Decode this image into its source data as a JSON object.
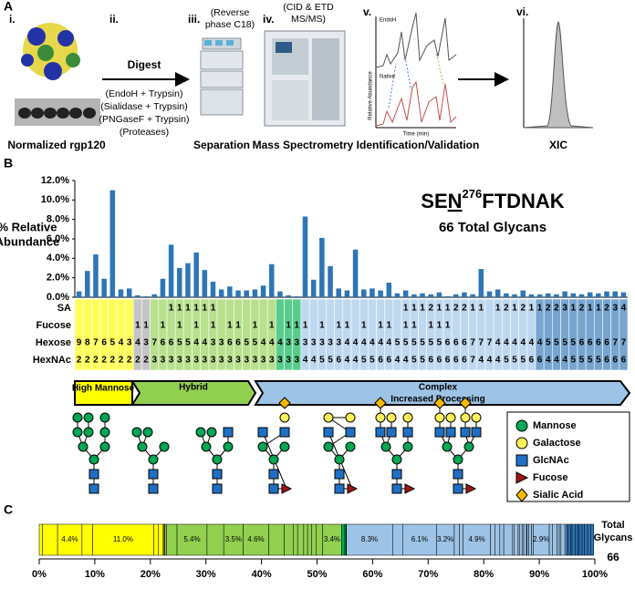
{
  "panel_a": {
    "label": "A",
    "steps": [
      {
        "numeral": "i.",
        "caption": "Normalized rgp120"
      },
      {
        "numeral": "ii."
      },
      {
        "numeral": "iii.",
        "note": [
          "(Reverse",
          "phase C18)"
        ],
        "caption": "Separation"
      },
      {
        "numeral": "iv.",
        "note": [
          "(CID & ETD",
          "MS/MS)"
        ],
        "caption": "Mass Spectrometry"
      },
      {
        "numeral": "v.",
        "caption": "Identification/Validation"
      },
      {
        "numeral": "vi.",
        "caption": "XIC"
      }
    ],
    "digest": {
      "title": "Digest",
      "methods": [
        "(EndoH + Trypsin)",
        "(Sialidase + Trypsin)",
        "(PNGaseF + Trypsin)",
        "(Proteases)"
      ]
    },
    "chromatogram": {
      "top_label": "EndoH",
      "bottom_label": "Native",
      "x_label": "Time (min)",
      "y_label": "Relative Abundance"
    }
  },
  "panel_b": {
    "label": "B",
    "peptide": {
      "prefix": "SE",
      "residue": "N",
      "position": "276",
      "suffix": "FTDNAK"
    },
    "glycan_count": "66 Total Glycans",
    "classes": [
      "High Mannose",
      "Hybrid",
      "Complex"
    ],
    "processing": "Increased Processing",
    "legend": [
      "Mannose",
      "Galactose",
      "GlcNAc",
      "Fucose",
      "Sialic Acid"
    ]
  },
  "panel_c": {
    "label": "C",
    "total_label": [
      "Total",
      "Glycans"
    ],
    "total": 66
  },
  "chart_data": [
    {
      "type": "bar",
      "y_label": [
        "% Relative",
        "Abundance"
      ],
      "bar_color": "#2e75b6",
      "values": [
        0.6,
        2.7,
        4.4,
        1.9,
        11.0,
        0.8,
        0.9,
        0.2,
        0.1,
        0.3,
        1.9,
        5.4,
        3.0,
        3.5,
        4.6,
        2.8,
        1.6,
        0.8,
        1.1,
        0.7,
        0.7,
        0.8,
        1.2,
        3.4,
        0.6,
        0.2,
        0.1,
        8.3,
        1.8,
        6.1,
        3.2,
        0.9,
        0.7,
        4.9,
        0.8,
        0.9,
        0.7,
        1.5,
        0.4,
        0.7,
        0.3,
        0.4,
        0.3,
        0.5,
        0.1,
        0.3,
        0.5,
        0.3,
        2.9,
        0.6,
        0.8,
        0.4,
        0.3,
        0.7,
        0.3,
        0.3,
        0.4,
        0.3,
        0.6,
        0.4,
        0.3,
        0.5,
        0.4,
        0.6,
        0.6,
        0.5
      ],
      "colors": [
        "#ffff00",
        "#ffff00",
        "#ffff00",
        "#ffff00",
        "#ffff00",
        "#ffff00",
        "#ffff00",
        "#a6a6a6",
        "#a6a6a6",
        "#92d050",
        "#92d050",
        "#92d050",
        "#92d050",
        "#92d050",
        "#92d050",
        "#92d050",
        "#92d050",
        "#92d050",
        "#92d050",
        "#92d050",
        "#92d050",
        "#92d050",
        "#92d050",
        "#92d050",
        "#00b050",
        "#00b050",
        "#00b050",
        "#9dc3e6",
        "#9dc3e6",
        "#9dc3e6",
        "#9dc3e6",
        "#9dc3e6",
        "#9dc3e6",
        "#9dc3e6",
        "#9dc3e6",
        "#9dc3e6",
        "#9dc3e6",
        "#9dc3e6",
        "#9dc3e6",
        "#9dc3e6",
        "#9dc3e6",
        "#9dc3e6",
        "#9dc3e6",
        "#9dc3e6",
        "#9dc3e6",
        "#9dc3e6",
        "#9dc3e6",
        "#9dc3e6",
        "#9dc3e6",
        "#9dc3e6",
        "#9dc3e6",
        "#9dc3e6",
        "#9dc3e6",
        "#9dc3e6",
        "#9dc3e6",
        "#2e75b6",
        "#2e75b6",
        "#2e75b6",
        "#2e75b6",
        "#2e75b6",
        "#2e75b6",
        "#2e75b6",
        "#2e75b6",
        "#2e75b6",
        "#2e75b6",
        "#2e75b6"
      ],
      "ylim": [
        0,
        12
      ],
      "yticks": [
        {
          "value": 0,
          "label": "0.0%"
        },
        {
          "value": 2,
          "label": "2.0%"
        },
        {
          "value": 4,
          "label": "4.0%"
        },
        {
          "value": 6,
          "label": "6.0%"
        },
        {
          "value": 8,
          "label": "8.0%"
        },
        {
          "value": 10,
          "label": "10.0%"
        },
        {
          "value": 12,
          "label": "12.0%"
        }
      ],
      "table": {
        "rows": [
          {
            "label": "SA",
            "values": [
              null,
              null,
              null,
              null,
              null,
              null,
              null,
              null,
              null,
              null,
              null,
              1,
              1,
              1,
              1,
              1,
              1,
              null,
              null,
              null,
              null,
              null,
              null,
              null,
              null,
              null,
              null,
              null,
              null,
              null,
              null,
              null,
              null,
              null,
              null,
              null,
              null,
              null,
              null,
              1,
              1,
              1,
              2,
              1,
              1,
              2,
              2,
              1,
              1,
              null,
              1,
              2,
              1,
              2,
              1,
              1,
              2,
              2,
              3,
              1,
              2,
              1,
              1,
              2,
              3,
              4
            ]
          },
          {
            "label": "Fucose",
            "values": [
              null,
              null,
              null,
              null,
              null,
              null,
              null,
              1,
              1,
              null,
              1,
              null,
              1,
              null,
              1,
              null,
              1,
              null,
              1,
              1,
              null,
              1,
              null,
              1,
              null,
              1,
              1,
              1,
              null,
              1,
              null,
              1,
              1,
              null,
              1,
              null,
              1,
              1,
              null,
              1,
              1,
              null,
              1,
              1,
              1,
              null,
              null,
              null,
              null,
              null,
              null,
              null,
              null,
              null,
              null,
              null,
              null,
              null,
              null,
              null,
              null,
              null,
              null,
              null,
              null,
              null
            ]
          },
          {
            "label": "Hexose",
            "values": [
              9,
              8,
              7,
              6,
              5,
              4,
              3,
              4,
              3,
              7,
              6,
              6,
              5,
              5,
              4,
              4,
              3,
              3,
              6,
              6,
              5,
              5,
              4,
              4,
              4,
              3,
              3,
              3,
              3,
              3,
              3,
              3,
              4,
              4,
              4,
              4,
              4,
              4,
              5,
              5,
              5,
              5,
              5,
              5,
              6,
              6,
              6,
              7,
              7,
              7,
              4,
              4,
              4,
              4,
              4,
              4,
              5,
              5,
              5,
              5,
              6,
              6,
              6,
              6,
              7,
              7
            ]
          },
          {
            "label": "HexNAc",
            "values": [
              2,
              2,
              2,
              2,
              2,
              2,
              2,
              2,
              2,
              3,
              3,
              3,
              3,
              3,
              3,
              3,
              3,
              3,
              3,
              3,
              3,
              3,
              3,
              3,
              3,
              3,
              3,
              4,
              4,
              5,
              5,
              6,
              4,
              4,
              5,
              5,
              6,
              6,
              4,
              4,
              5,
              5,
              6,
              6,
              6,
              6,
              6,
              7,
              4,
              4,
              4,
              5,
              5,
              5,
              6,
              6,
              4,
              4,
              4,
              5,
              5,
              5,
              5,
              6,
              6,
              6
            ]
          }
        ]
      }
    },
    {
      "type": "stacked_bar",
      "values": [
        0.6,
        2.7,
        4.4,
        1.9,
        11.0,
        0.8,
        0.9,
        0.2,
        0.1,
        0.3,
        1.9,
        5.4,
        3.0,
        3.5,
        4.6,
        2.8,
        1.6,
        0.8,
        1.1,
        0.7,
        0.7,
        0.8,
        1.2,
        3.4,
        0.6,
        0.2,
        0.1,
        8.3,
        1.8,
        6.1,
        3.2,
        0.9,
        0.7,
        4.9,
        0.8,
        0.9,
        0.7,
        1.5,
        0.4,
        0.7,
        0.3,
        0.4,
        0.3,
        0.5,
        0.1,
        0.3,
        0.5,
        0.3,
        2.9,
        0.6,
        0.8,
        0.4,
        0.3,
        0.7,
        0.3,
        0.3,
        0.4,
        0.3,
        0.6,
        0.4,
        0.3,
        0.5,
        0.4,
        0.6,
        0.6,
        0.5
      ],
      "value_labels": [
        null,
        null,
        "4.4%",
        null,
        "11.0%",
        null,
        null,
        null,
        null,
        null,
        null,
        "5.4%",
        null,
        "3.5%",
        "4.6%",
        null,
        null,
        null,
        null,
        null,
        null,
        null,
        null,
        "3.4%",
        null,
        null,
        null,
        "8.3%",
        null,
        "6.1%",
        "3.2%",
        null,
        null,
        "4.9%",
        null,
        null,
        null,
        null,
        null,
        null,
        null,
        null,
        null,
        null,
        null,
        null,
        null,
        null,
        "2.9%",
        null,
        null,
        null,
        null,
        null,
        null,
        null,
        null,
        null,
        null,
        null,
        null,
        null,
        null,
        null,
        null,
        null
      ],
      "xlim": [
        0,
        100
      ],
      "xticks": [
        {
          "value": 0,
          "label": "0%"
        },
        {
          "value": 10,
          "label": "10%"
        },
        {
          "value": 20,
          "label": "20%"
        },
        {
          "value": 30,
          "label": "30%"
        },
        {
          "value": 40,
          "label": "40%"
        },
        {
          "value": 50,
          "label": "50%"
        },
        {
          "value": 60,
          "label": "60%"
        },
        {
          "value": 70,
          "label": "70%"
        },
        {
          "value": 80,
          "label": "80%"
        },
        {
          "value": 90,
          "label": "90%"
        },
        {
          "value": 100,
          "label": "100%"
        }
      ]
    }
  ]
}
